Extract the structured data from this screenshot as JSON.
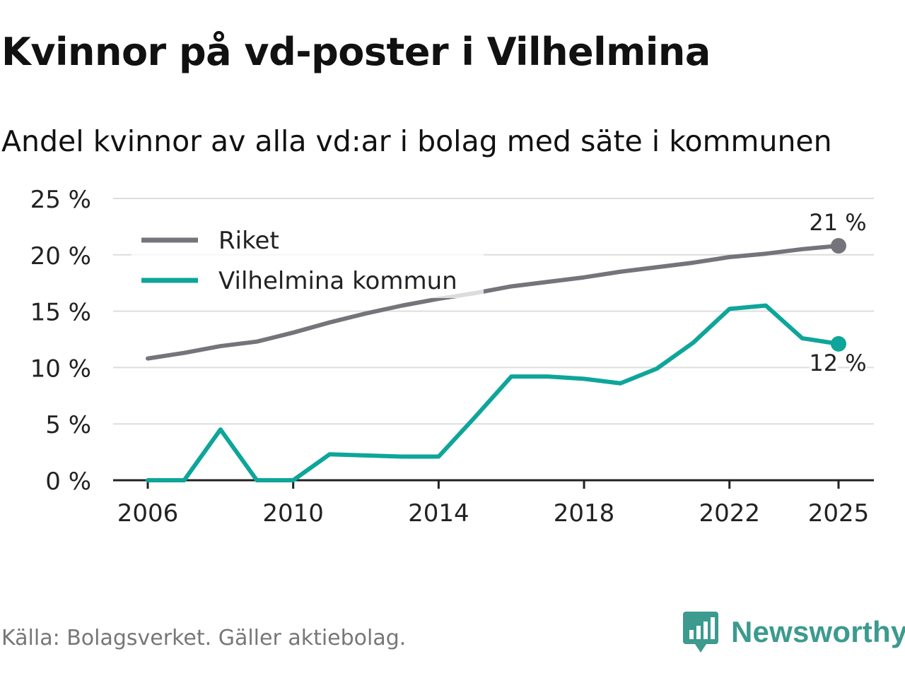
{
  "header": {
    "title": "Kvinnor på vd-poster i Vilhelmina",
    "subtitle": "Andel kvinnor av alla vd:ar i bolag med säte i kommunen"
  },
  "footer": {
    "source": "Källa: Bolagsverket. Gäller aktiebolag.",
    "brand": "Newsworthy",
    "brand_icon": "newsworthy-logo-icon"
  },
  "colors": {
    "riket": "#76747b",
    "vilhelmina": "#0ea59a",
    "grid": "#dddddd",
    "axis": "#222222",
    "brand": "#3c9a8f"
  },
  "chart_data": {
    "type": "line",
    "title": "Kvinnor på vd-poster i Vilhelmina",
    "subtitle": "Andel kvinnor av alla vd:ar i bolag med säte i kommunen",
    "x": [
      2006,
      2007,
      2008,
      2009,
      2010,
      2011,
      2012,
      2013,
      2014,
      2015,
      2016,
      2017,
      2018,
      2019,
      2020,
      2021,
      2022,
      2023,
      2024,
      2025
    ],
    "x_ticks": [
      2006,
      2010,
      2014,
      2018,
      2022,
      2025
    ],
    "x_tick_labels": [
      "2006",
      "2010",
      "2014",
      "2018",
      "2022",
      "2025"
    ],
    "ylim": [
      0,
      25
    ],
    "y_ticks": [
      0,
      5,
      10,
      15,
      20,
      25
    ],
    "y_tick_labels": [
      "0 %",
      "5 %",
      "10 %",
      "15 %",
      "20 %",
      "25 %"
    ],
    "grid": true,
    "legend_position": "top-left",
    "series": [
      {
        "name": "Riket",
        "color": "#76747b",
        "values": [
          10.8,
          11.3,
          11.9,
          12.3,
          13.1,
          14.0,
          14.8,
          15.5,
          16.1,
          16.6,
          17.2,
          17.6,
          18.0,
          18.5,
          18.9,
          19.3,
          19.8,
          20.1,
          20.5,
          20.8
        ],
        "end_label": "21 %",
        "end_label_position": "above"
      },
      {
        "name": "Vilhelmina kommun",
        "color": "#0ea59a",
        "values": [
          0.0,
          0.0,
          4.5,
          0.0,
          0.0,
          2.3,
          2.2,
          2.1,
          2.1,
          5.6,
          9.2,
          9.2,
          9.0,
          8.6,
          9.9,
          12.2,
          15.2,
          15.5,
          12.6,
          12.1
        ],
        "end_label": "12 %",
        "end_label_position": "below"
      }
    ]
  }
}
